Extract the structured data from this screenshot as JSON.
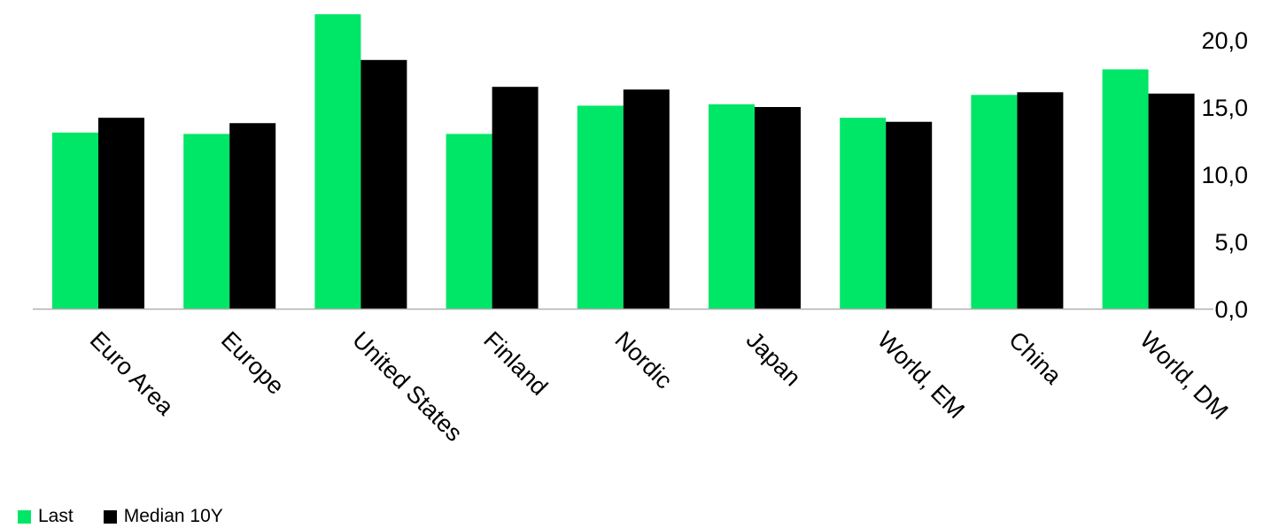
{
  "chart_data": {
    "type": "bar",
    "categories": [
      "Euro Area",
      "Europe",
      "United States",
      "Finland",
      "Nordic",
      "Japan",
      "World, EM",
      "China",
      "World, DM"
    ],
    "series": [
      {
        "name": "Last",
        "color": "#00e667",
        "values": [
          13.1,
          13.0,
          21.9,
          13.0,
          15.1,
          15.2,
          14.2,
          15.9,
          17.8
        ]
      },
      {
        "name": "Median 10Y",
        "color": "#000000",
        "values": [
          14.2,
          13.8,
          18.5,
          16.5,
          16.3,
          15.0,
          13.9,
          16.1,
          16.0
        ]
      }
    ],
    "ylim": [
      0,
      22
    ],
    "yticks": [
      "0,0",
      "5,0",
      "10,0",
      "15,0",
      "20,0"
    ],
    "ytick_values": [
      0,
      5,
      10,
      15,
      20
    ],
    "legend_position": "bottom-left",
    "grid": false
  }
}
